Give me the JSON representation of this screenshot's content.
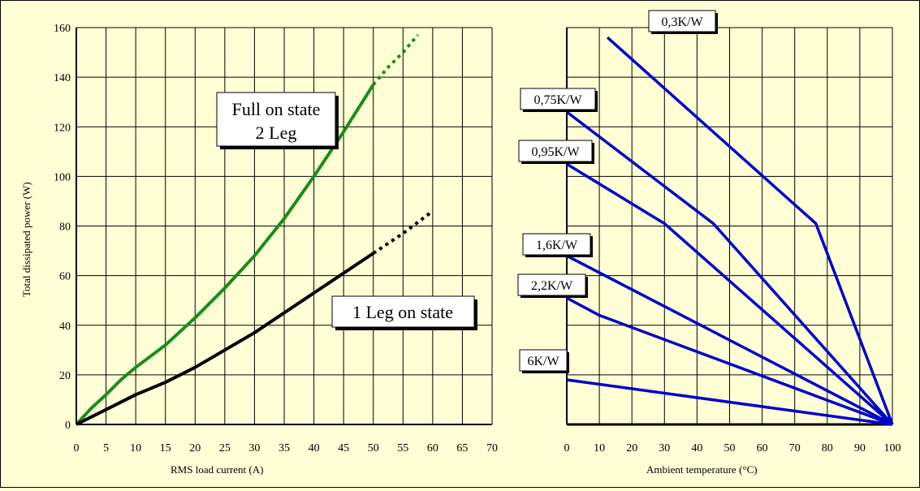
{
  "chart_data": [
    {
      "type": "line",
      "xlabel": "RMS load current (A)",
      "ylabel": "Total dissipated power (W)",
      "xlim": [
        0,
        70
      ],
      "ylim": [
        0,
        160
      ],
      "x_ticks": [
        "0",
        "5",
        "10",
        "15",
        "20",
        "25",
        "30",
        "35",
        "40",
        "45",
        "50",
        "55",
        "60",
        "65",
        "70"
      ],
      "y_ticks": [
        "0",
        "20",
        "40",
        "60",
        "80",
        "100",
        "120",
        "140",
        "160"
      ],
      "grid": true,
      "series": [
        {
          "name": "Full on state 2 Leg",
          "color": "#1a8c1a",
          "x": [
            0,
            2.5,
            5,
            7.5,
            10,
            15,
            20,
            25,
            30,
            35,
            40,
            45,
            50
          ],
          "y": [
            0,
            6.5,
            12,
            18,
            23,
            32,
            43,
            55,
            68,
            83,
            100,
            118,
            137
          ],
          "dotted_x": [
            50,
            52.5,
            55,
            57.5
          ],
          "dotted_y": [
            137,
            144,
            150,
            157
          ]
        },
        {
          "name": "1 Leg on state",
          "color": "#000000",
          "x": [
            0,
            5,
            10,
            15,
            20,
            25,
            30,
            35,
            40,
            45,
            50
          ],
          "y": [
            0,
            6,
            12,
            17,
            23,
            30,
            37,
            45,
            53,
            61,
            69
          ],
          "dotted_x": [
            50,
            55,
            60
          ],
          "dotted_y": [
            69,
            77,
            86
          ]
        }
      ],
      "annotations": [
        {
          "lines": [
            "Full on state",
            "2 Leg"
          ]
        },
        {
          "lines": [
            "1 Leg on state"
          ]
        }
      ]
    },
    {
      "type": "line",
      "xlabel": "Ambient temperature (°C)",
      "ylabel": "",
      "xlim": [
        0,
        100
      ],
      "ylim": [
        0,
        160
      ],
      "x_ticks": [
        "0",
        "10",
        "20",
        "30",
        "40",
        "50",
        "60",
        "70",
        "80",
        "90",
        "100"
      ],
      "grid": true,
      "color": "#0000cc",
      "series": [
        {
          "name": "0,3K/W",
          "x": [
            12.5,
            76.5,
            100
          ],
          "y": [
            156,
            81,
            0
          ]
        },
        {
          "name": "0,75K/W",
          "x": [
            0,
            45,
            100
          ],
          "y": [
            126,
            81,
            0
          ]
        },
        {
          "name": "0,95K/W",
          "x": [
            0,
            30,
            100
          ],
          "y": [
            105,
            81,
            0
          ]
        },
        {
          "name": "1,6K/W",
          "x": [
            0,
            100
          ],
          "y": [
            68,
            0
          ]
        },
        {
          "name": "2,2K/W",
          "x": [
            0,
            10,
            100
          ],
          "y": [
            51,
            44,
            0
          ]
        },
        {
          "name": "6K/W",
          "x": [
            0,
            100
          ],
          "y": [
            18,
            0
          ]
        }
      ]
    }
  ]
}
